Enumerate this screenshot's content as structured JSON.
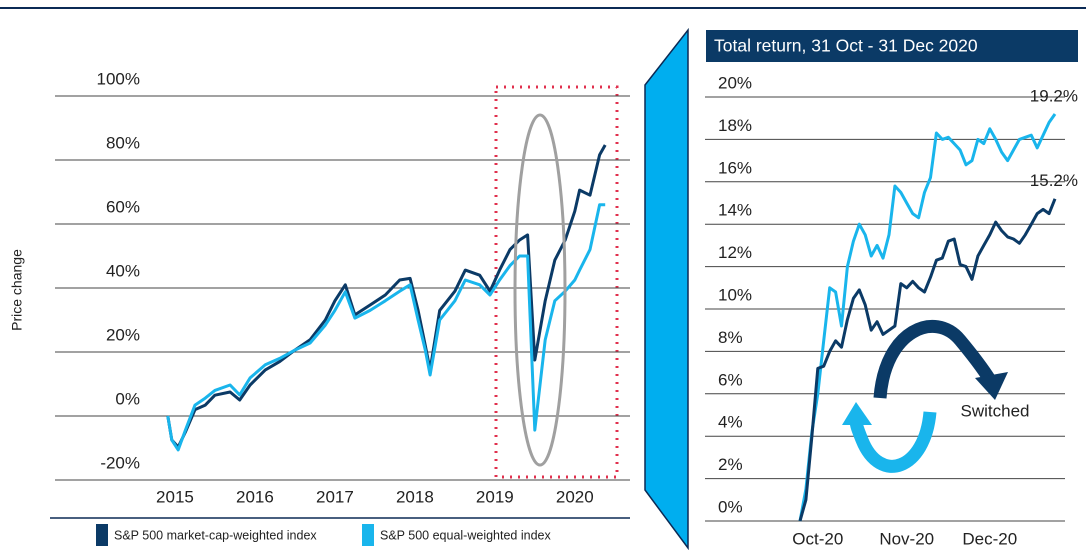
{
  "chart_data": [
    {
      "type": "line",
      "y_label": "Price change",
      "x": [
        2014.91,
        2014.96,
        2015.04,
        2015.13,
        2015.25,
        2015.38,
        2015.5,
        2015.69,
        2015.81,
        2015.94,
        2016.13,
        2016.31,
        2016.5,
        2016.69,
        2016.88,
        2017.0,
        2017.13,
        2017.25,
        2017.44,
        2017.63,
        2017.81,
        2017.94,
        2018.04,
        2018.13,
        2018.19,
        2018.31,
        2018.5,
        2018.63,
        2018.81,
        2018.94,
        2019.06,
        2019.19,
        2019.31,
        2019.41,
        2019.5,
        2019.63,
        2019.75,
        2019.88,
        2020.0,
        2020.06,
        2020.19,
        2020.31,
        2020.38
      ],
      "xlim": [
        2013.5,
        2020.69
      ],
      "xticks": [
        2015,
        2016,
        2017,
        2018,
        2019,
        2020
      ],
      "ylim": [
        -20,
        100
      ],
      "yticks": [
        {
          "value": -20,
          "label": "-20%"
        },
        {
          "value": 0,
          "label": "0%"
        },
        {
          "value": 20,
          "label": "20%"
        },
        {
          "value": 40,
          "label": "40%"
        },
        {
          "value": 60,
          "label": "60%"
        },
        {
          "value": 80,
          "label": "80%"
        },
        {
          "value": 100,
          "label": "100%"
        }
      ],
      "grid": true,
      "series": [
        {
          "name": "S&P 500 market-cap-weighted index",
          "color": "#0b3a66",
          "values": [
            0,
            -7.5,
            -9.7,
            -5,
            2,
            3.4,
            6.5,
            7.5,
            5,
            9.7,
            14.4,
            17,
            20.6,
            23.8,
            30,
            36,
            41,
            31.6,
            34.7,
            37.8,
            42.5,
            43,
            33,
            22,
            14.4,
            33,
            39,
            45.6,
            44,
            39,
            45.6,
            52,
            55,
            56.6,
            17.5,
            36,
            48.7,
            55,
            64,
            70.6,
            69,
            81.6,
            84.7
          ]
        },
        {
          "name": "S&P 500 equal-weighted index",
          "color": "#19b5ec",
          "values": [
            0,
            -7.5,
            -10.6,
            -4.4,
            3.4,
            5.6,
            8,
            9.7,
            6.6,
            11.9,
            16,
            18,
            20.6,
            22.8,
            28.4,
            33,
            38.8,
            30.6,
            33,
            36,
            39,
            41,
            30,
            20.6,
            12.8,
            30,
            36,
            42.5,
            41,
            37.8,
            42.5,
            47,
            50,
            50,
            -4.4,
            23.8,
            36,
            39,
            42.5,
            45.6,
            52,
            66,
            66
          ]
        }
      ]
    },
    {
      "type": "line",
      "title": "Total return, 31 Oct - 31 Dec 2020",
      "categories": [
        null,
        null,
        null,
        "Oct-20",
        null,
        null,
        null,
        null,
        null,
        null,
        null,
        null,
        null,
        null,
        null,
        null,
        null,
        null,
        "Nov-20",
        null,
        null,
        null,
        null,
        null,
        null,
        null,
        null,
        null,
        null,
        null,
        null,
        null,
        "Dec-20",
        null,
        null,
        null,
        null,
        null,
        null,
        null,
        null,
        null,
        null,
        null
      ],
      "ylim": [
        0,
        20
      ],
      "yticks": [
        {
          "value": 0,
          "label": "0%"
        },
        {
          "value": 2,
          "label": "2%"
        },
        {
          "value": 4,
          "label": "4%"
        },
        {
          "value": 6,
          "label": "6%"
        },
        {
          "value": 8,
          "label": "8%"
        },
        {
          "value": 10,
          "label": "10%"
        },
        {
          "value": 12,
          "label": "12%"
        },
        {
          "value": 14,
          "label": "14%"
        },
        {
          "value": 16,
          "label": "16%"
        },
        {
          "value": 18,
          "label": "18%"
        },
        {
          "value": 20,
          "label": "20%"
        }
      ],
      "grid": true,
      "annotations": [
        "Switched"
      ],
      "series": [
        {
          "color": "#19b5ec",
          "values": [
            0,
            1.5,
            4.2,
            6.0,
            8.5,
            11.0,
            10.8,
            9.2,
            12.0,
            13.2,
            14.0,
            13.5,
            12.5,
            13.0,
            12.4,
            13.5,
            15.8,
            15.5,
            15.0,
            14.5,
            14.3,
            15.5,
            16.2,
            18.3,
            18.0,
            18.1,
            17.8,
            17.5,
            16.8,
            17.0,
            18.0,
            17.8,
            18.5,
            18.0,
            17.4,
            17.0,
            17.5,
            18.0,
            18.1,
            18.2,
            17.6,
            18.2,
            18.8,
            19.2
          ],
          "value_labels": [
            null,
            null,
            null,
            null,
            null,
            null,
            null,
            null,
            null,
            null,
            null,
            null,
            null,
            null,
            null,
            null,
            null,
            null,
            null,
            null,
            null,
            null,
            null,
            null,
            null,
            null,
            null,
            null,
            null,
            null,
            null,
            null,
            null,
            null,
            null,
            null,
            null,
            null,
            null,
            null,
            null,
            null,
            null,
            "19.2%"
          ]
        },
        {
          "color": "#0b3a66",
          "values": [
            0,
            1.0,
            4.0,
            7.2,
            7.3,
            8.0,
            8.5,
            8.2,
            9.5,
            10.5,
            10.9,
            10.2,
            9.0,
            9.4,
            8.8,
            9.0,
            9.2,
            11.2,
            11.0,
            11.3,
            11.0,
            10.8,
            11.5,
            12.3,
            12.4,
            13.2,
            13.3,
            12.1,
            12.0,
            11.4,
            12.5,
            13.0,
            13.5,
            14.1,
            13.7,
            13.4,
            13.3,
            13.1,
            13.5,
            14.0,
            14.5,
            14.7,
            14.5,
            15.2
          ],
          "value_labels": [
            null,
            null,
            null,
            null,
            null,
            null,
            null,
            null,
            null,
            null,
            null,
            null,
            null,
            null,
            null,
            null,
            null,
            null,
            null,
            null,
            null,
            null,
            null,
            null,
            null,
            null,
            null,
            null,
            null,
            null,
            null,
            null,
            null,
            null,
            null,
            null,
            null,
            null,
            null,
            null,
            null,
            null,
            null,
            "15.2%"
          ]
        }
      ]
    }
  ]
}
